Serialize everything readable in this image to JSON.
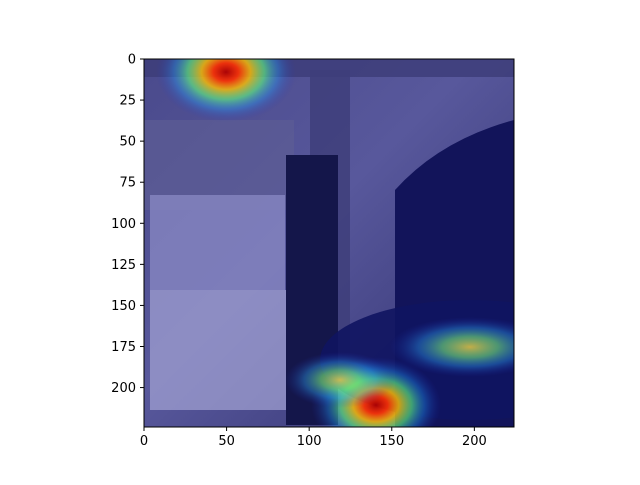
{
  "chart_data": {
    "type": "heatmap",
    "title": "",
    "xlabel": "",
    "ylabel": "",
    "description_of_values": "Image (224x224 px) with jet-colormap attention overlay; hotspots listed in image pixel coordinates.",
    "xlim": [
      0,
      224
    ],
    "ylim": [
      224,
      0
    ],
    "x_ticks": [
      0,
      50,
      100,
      150,
      200
    ],
    "y_ticks": [
      0,
      25,
      50,
      75,
      100,
      125,
      150,
      175,
      200
    ],
    "x_tick_labels": [
      "0",
      "50",
      "100",
      "150",
      "200"
    ],
    "y_tick_labels": [
      "0",
      "25",
      "50",
      "75",
      "100",
      "125",
      "150",
      "175",
      "200"
    ],
    "colormap": "jet",
    "hotspots": [
      {
        "x": 50,
        "y": 8,
        "intensity": 0.95
      },
      {
        "x": 140,
        "y": 210,
        "intensity": 0.9
      },
      {
        "x": 180,
        "y": 175,
        "intensity": 0.45
      },
      {
        "x": 110,
        "y": 195,
        "intensity": 0.5
      }
    ],
    "grid": false
  },
  "colors": {
    "axis": "#000000",
    "background": "#ffffff",
    "overlay_base": "#1c1f8c"
  }
}
